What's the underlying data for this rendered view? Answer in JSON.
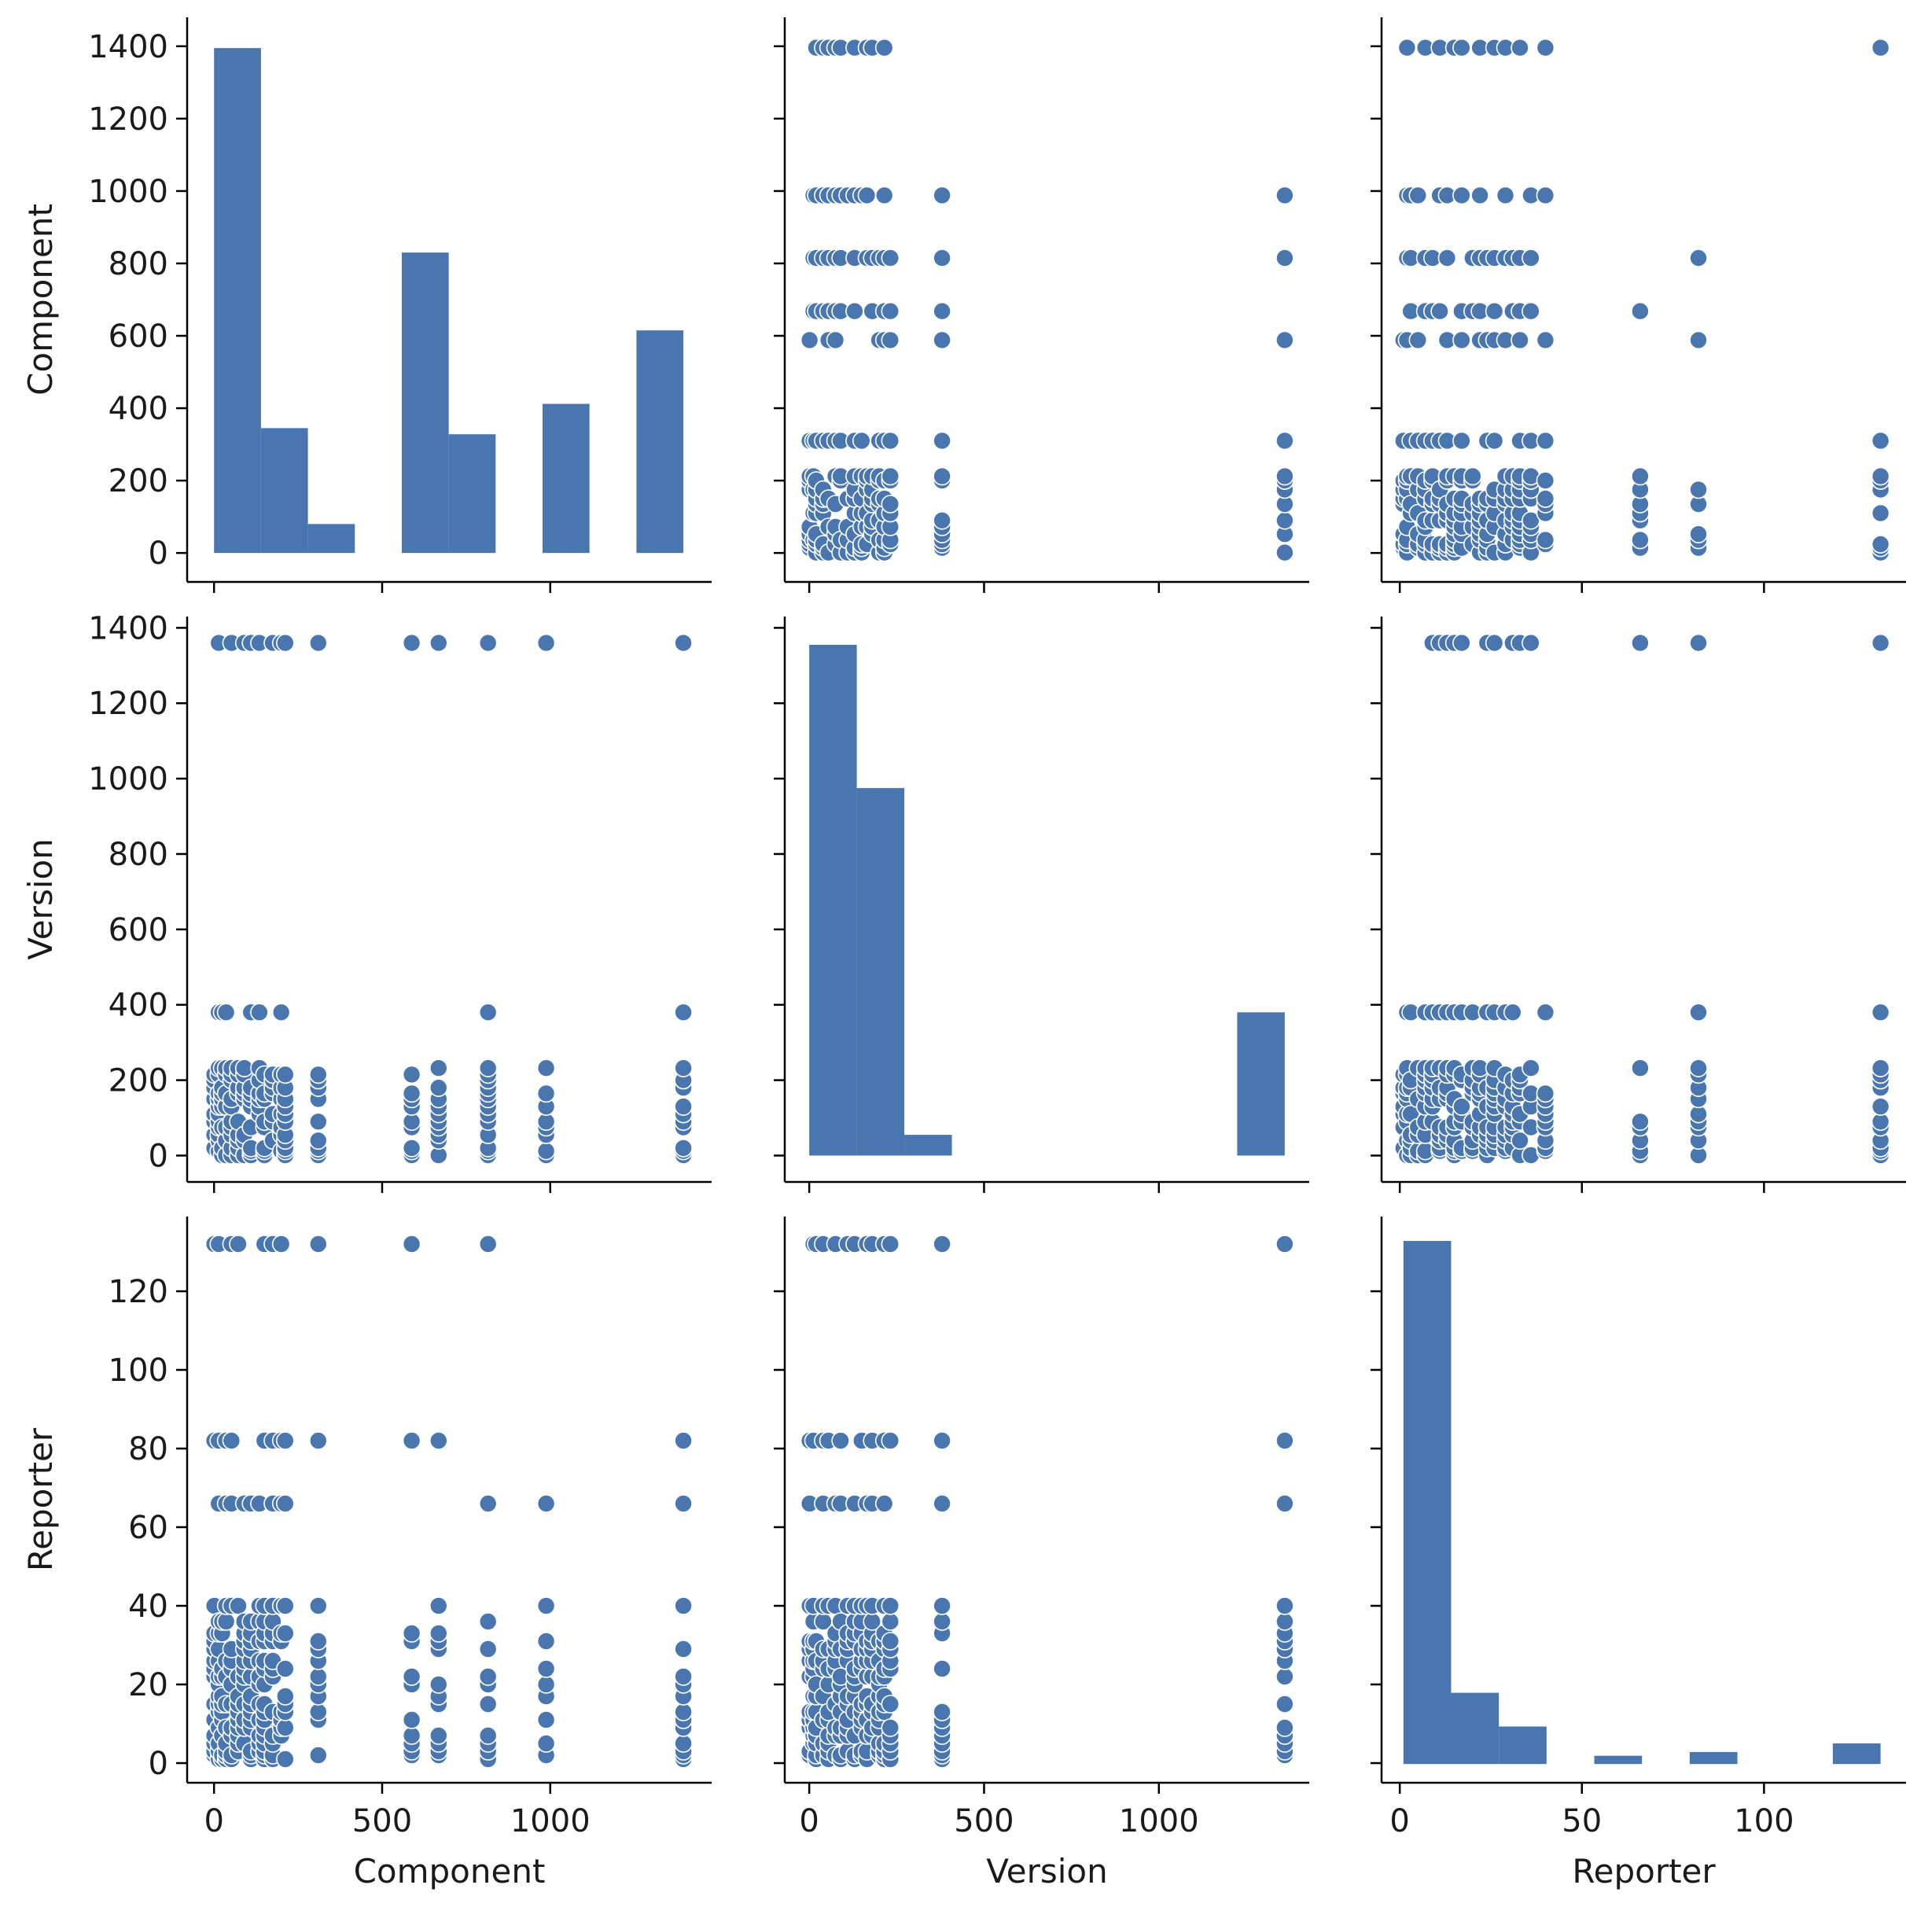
{
  "chart_data": {
    "type": "scatter",
    "title": "",
    "variables": [
      "Component",
      "Version",
      "Reporter"
    ],
    "colors": {
      "marker": "#4a76b0",
      "bar": "#4a76b0",
      "edge": "#ffffff",
      "axis": "#000000"
    },
    "axes": {
      "Component": {
        "range": [
          -80,
          1480
        ],
        "ticks": [
          0,
          200,
          400,
          600,
          800,
          1000,
          1200,
          1400
        ],
        "bottom_ticks": [
          0,
          500,
          1000
        ],
        "bottom_tick_labels": [
          "0",
          "500",
          "1000"
        ]
      },
      "Version": {
        "range": [
          -70,
          1430
        ],
        "ticks": [
          0,
          200,
          400,
          600,
          800,
          1000,
          1200,
          1400
        ],
        "bottom_ticks": [
          0,
          500,
          1000
        ],
        "bottom_tick_labels": [
          "0",
          "500",
          "1000"
        ]
      },
      "Reporter": {
        "range": [
          -5,
          139
        ],
        "ticks": [
          0,
          20,
          40,
          60,
          80,
          100,
          120
        ],
        "bottom_ticks": [
          0,
          50,
          100
        ],
        "bottom_tick_labels": [
          "0",
          "50",
          "100"
        ]
      }
    },
    "axis_labels": {
      "rows": [
        "Component",
        "Version",
        "Reporter"
      ],
      "cols": [
        "Component",
        "Version",
        "Reporter"
      ]
    },
    "histograms": {
      "Component": {
        "edges": [
          0,
          139.6,
          279.2,
          418.8,
          558.4,
          698,
          837.6,
          977.2,
          1116.8,
          1256.4,
          1396
        ],
        "counts": [
          1395,
          345,
          80,
          0,
          830,
          328,
          0,
          412,
          0,
          615
        ],
        "count_ylim": [
          -80,
          1480
        ]
      },
      "Version": {
        "edges": [
          0,
          136,
          272,
          408,
          544,
          680,
          816,
          952,
          1088,
          1224,
          1360
        ],
        "counts": [
          1355,
          975,
          55,
          0,
          0,
          0,
          0,
          0,
          0,
          380
        ],
        "count_ylim": [
          -70,
          1430
        ]
      },
      "Reporter": {
        "edges": [
          1,
          14.1,
          27.2,
          40.3,
          53.4,
          66.5,
          79.6,
          92.7,
          105.8,
          118.9,
          132
        ],
        "counts": [
          1395,
          190,
          100,
          0,
          22,
          0,
          32,
          0,
          0,
          55
        ],
        "count_ylim": [
          -50,
          1460
        ]
      }
    },
    "scatter": {
      "component_values": [
        1,
        14,
        24,
        36,
        52,
        72,
        90,
        110,
        135,
        150,
        175,
        200,
        212,
        310,
        588,
        668,
        815,
        988,
        1396
      ],
      "version_values": [
        1,
        12,
        20,
        40,
        55,
        75,
        90,
        110,
        130,
        150,
        165,
        180,
        200,
        215,
        232,
        380,
        1360
      ],
      "reporter_values": [
        1,
        2,
        3,
        5,
        7,
        9,
        11,
        13,
        15,
        17,
        20,
        22,
        24,
        26,
        29,
        31,
        33,
        36,
        40,
        66,
        82,
        132
      ]
    }
  }
}
